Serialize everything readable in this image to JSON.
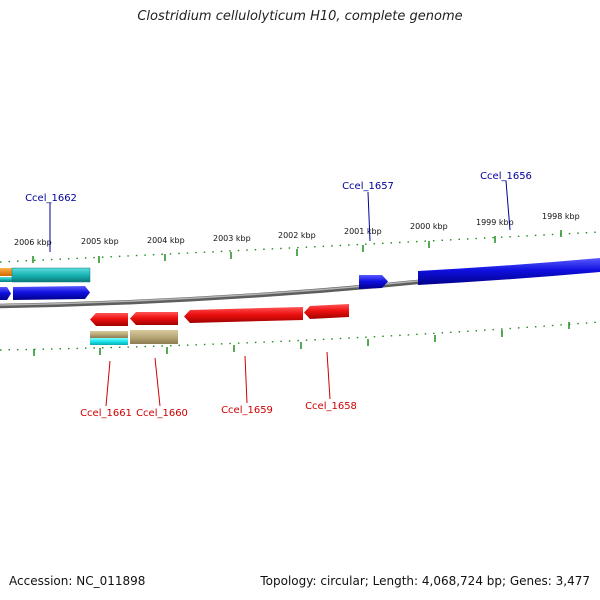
{
  "title": "Clostridium cellulolyticum H10, complete genome",
  "footer": {
    "accession": "Accession: NC_011898",
    "summary": "Topology: circular; Length: 4,068,724 bp; Genes: 3,477"
  },
  "colors": {
    "forward_label": "#00009a",
    "reverse_label": "#cc0000",
    "tick": "#1e8c1e",
    "backbone": "#7a7a7a",
    "blue": "#1010e0",
    "red": "#ee1111",
    "teal": "#1ab5b5",
    "tan": "#b8a878",
    "cyan": "#18e6ee",
    "orange": "#ff8c00"
  },
  "kbp_labels": [
    "2006 kbp",
    "2005 kbp",
    "2004 kbp",
    "2003 kbp",
    "2002 kbp",
    "2001 kbp",
    "2000 kbp",
    "1999 kbp",
    "1998 kbp"
  ],
  "gene_labels": {
    "top": [
      "Ccel_1662",
      "Ccel_1657",
      "Ccel_1656"
    ],
    "bottom": [
      "Ccel_1661",
      "Ccel_1660",
      "Ccel_1659",
      "Ccel_1658"
    ]
  }
}
